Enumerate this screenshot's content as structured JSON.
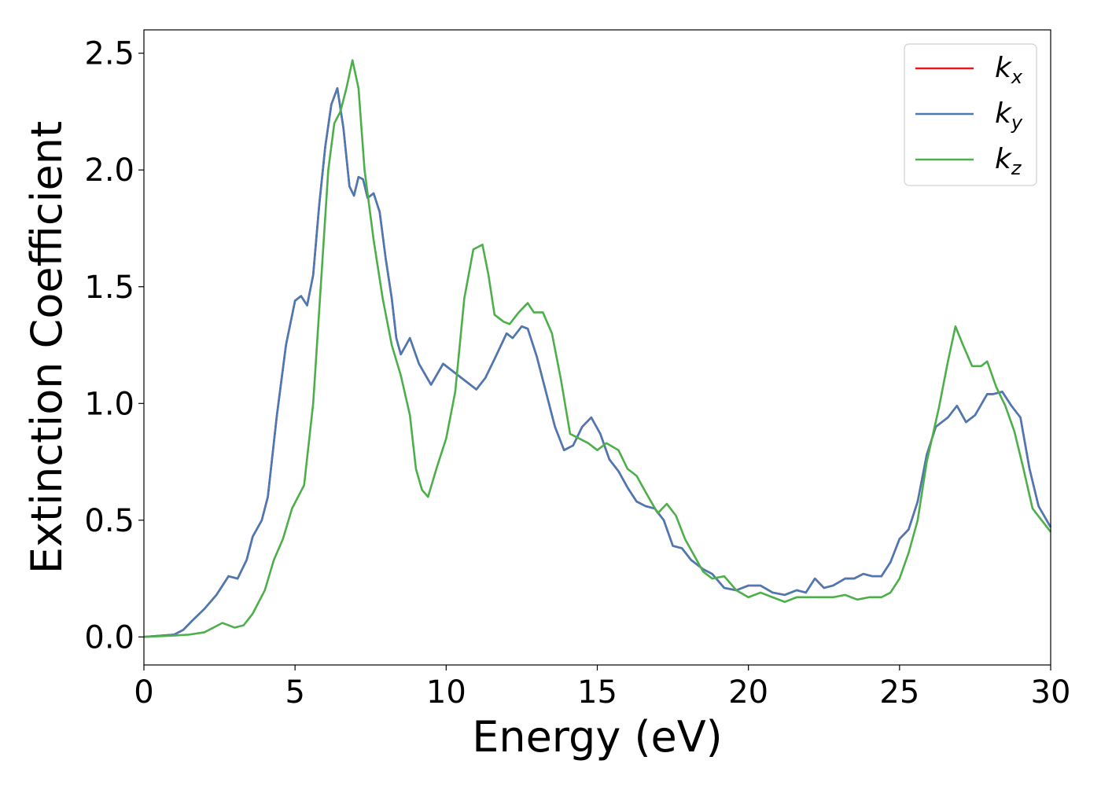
{
  "chart_data": {
    "type": "line",
    "xlabel": "Energy (eV)",
    "ylabel": "Extinction Coefficient",
    "xlim": [
      0,
      30
    ],
    "ylim": [
      -0.12,
      2.6
    ],
    "xticks": [
      0,
      5,
      10,
      15,
      20,
      25,
      30
    ],
    "xtick_labels": [
      "0",
      "5",
      "10",
      "15",
      "20",
      "25",
      "30"
    ],
    "yticks": [
      0.0,
      0.5,
      1.0,
      1.5,
      2.0,
      2.5
    ],
    "ytick_labels": [
      "0.0",
      "0.5",
      "1.0",
      "1.5",
      "2.0",
      "2.5"
    ],
    "grid": false,
    "legend_position": "top-right",
    "series": [
      {
        "name": "k",
        "subscript": "x",
        "color": "#e41a1c",
        "points": [
          [
            0,
            0
          ],
          [
            0.5,
            0.005
          ],
          [
            1,
            0.01
          ],
          [
            1.3,
            0.03
          ],
          [
            1.6,
            0.07
          ],
          [
            2,
            0.12
          ],
          [
            2.4,
            0.18
          ],
          [
            2.8,
            0.26
          ],
          [
            3.1,
            0.25
          ],
          [
            3.4,
            0.33
          ],
          [
            3.6,
            0.43
          ],
          [
            3.9,
            0.5
          ],
          [
            4.1,
            0.6
          ],
          [
            4.4,
            0.95
          ],
          [
            4.7,
            1.25
          ],
          [
            5.0,
            1.44
          ],
          [
            5.2,
            1.46
          ],
          [
            5.4,
            1.42
          ],
          [
            5.6,
            1.55
          ],
          [
            5.8,
            1.85
          ],
          [
            6.0,
            2.1
          ],
          [
            6.2,
            2.28
          ],
          [
            6.4,
            2.35
          ],
          [
            6.6,
            2.18
          ],
          [
            6.8,
            1.93
          ],
          [
            6.95,
            1.89
          ],
          [
            7.1,
            1.97
          ],
          [
            7.25,
            1.96
          ],
          [
            7.4,
            1.88
          ],
          [
            7.6,
            1.9
          ],
          [
            7.8,
            1.82
          ],
          [
            8.0,
            1.62
          ],
          [
            8.2,
            1.45
          ],
          [
            8.35,
            1.28
          ],
          [
            8.5,
            1.21
          ],
          [
            8.8,
            1.28
          ],
          [
            9.1,
            1.17
          ],
          [
            9.5,
            1.08
          ],
          [
            9.9,
            1.17
          ],
          [
            10.3,
            1.13
          ],
          [
            10.7,
            1.09
          ],
          [
            11.0,
            1.06
          ],
          [
            11.3,
            1.11
          ],
          [
            11.6,
            1.19
          ],
          [
            12.0,
            1.3
          ],
          [
            12.2,
            1.28
          ],
          [
            12.5,
            1.33
          ],
          [
            12.7,
            1.32
          ],
          [
            13.0,
            1.2
          ],
          [
            13.3,
            1.05
          ],
          [
            13.6,
            0.9
          ],
          [
            13.9,
            0.8
          ],
          [
            14.2,
            0.82
          ],
          [
            14.5,
            0.9
          ],
          [
            14.8,
            0.94
          ],
          [
            15.1,
            0.87
          ],
          [
            15.4,
            0.76
          ],
          [
            15.7,
            0.71
          ],
          [
            16.0,
            0.64
          ],
          [
            16.3,
            0.58
          ],
          [
            16.6,
            0.56
          ],
          [
            16.9,
            0.55
          ],
          [
            17.2,
            0.5
          ],
          [
            17.5,
            0.39
          ],
          [
            17.8,
            0.38
          ],
          [
            18.1,
            0.33
          ],
          [
            18.5,
            0.29
          ],
          [
            18.8,
            0.27
          ],
          [
            19.2,
            0.21
          ],
          [
            19.6,
            0.2
          ],
          [
            20.0,
            0.22
          ],
          [
            20.4,
            0.22
          ],
          [
            20.8,
            0.19
          ],
          [
            21.2,
            0.18
          ],
          [
            21.6,
            0.2
          ],
          [
            21.9,
            0.19
          ],
          [
            22.2,
            0.25
          ],
          [
            22.5,
            0.21
          ],
          [
            22.8,
            0.22
          ],
          [
            23.2,
            0.25
          ],
          [
            23.5,
            0.25
          ],
          [
            23.8,
            0.27
          ],
          [
            24.1,
            0.26
          ],
          [
            24.4,
            0.26
          ],
          [
            24.7,
            0.32
          ],
          [
            25.0,
            0.42
          ],
          [
            25.3,
            0.46
          ],
          [
            25.6,
            0.58
          ],
          [
            25.9,
            0.78
          ],
          [
            26.2,
            0.9
          ],
          [
            26.6,
            0.94
          ],
          [
            26.9,
            0.99
          ],
          [
            27.2,
            0.92
          ],
          [
            27.5,
            0.95
          ],
          [
            27.9,
            1.04
          ],
          [
            28.1,
            1.04
          ],
          [
            28.4,
            1.05
          ],
          [
            28.7,
            0.99
          ],
          [
            29.0,
            0.94
          ],
          [
            29.3,
            0.72
          ],
          [
            29.6,
            0.56
          ],
          [
            30.0,
            0.47
          ]
        ]
      },
      {
        "name": "k",
        "subscript": "y",
        "color": "#4a7ab5",
        "points": [
          [
            0,
            0
          ],
          [
            0.5,
            0.005
          ],
          [
            1,
            0.01
          ],
          [
            1.3,
            0.03
          ],
          [
            1.6,
            0.07
          ],
          [
            2,
            0.12
          ],
          [
            2.4,
            0.18
          ],
          [
            2.8,
            0.26
          ],
          [
            3.1,
            0.25
          ],
          [
            3.4,
            0.33
          ],
          [
            3.6,
            0.43
          ],
          [
            3.9,
            0.5
          ],
          [
            4.1,
            0.6
          ],
          [
            4.4,
            0.95
          ],
          [
            4.7,
            1.25
          ],
          [
            5.0,
            1.44
          ],
          [
            5.2,
            1.46
          ],
          [
            5.4,
            1.42
          ],
          [
            5.6,
            1.55
          ],
          [
            5.8,
            1.85
          ],
          [
            6.0,
            2.1
          ],
          [
            6.2,
            2.28
          ],
          [
            6.4,
            2.35
          ],
          [
            6.6,
            2.18
          ],
          [
            6.8,
            1.93
          ],
          [
            6.95,
            1.89
          ],
          [
            7.1,
            1.97
          ],
          [
            7.25,
            1.96
          ],
          [
            7.4,
            1.88
          ],
          [
            7.6,
            1.9
          ],
          [
            7.8,
            1.82
          ],
          [
            8.0,
            1.62
          ],
          [
            8.2,
            1.45
          ],
          [
            8.35,
            1.28
          ],
          [
            8.5,
            1.21
          ],
          [
            8.8,
            1.28
          ],
          [
            9.1,
            1.17
          ],
          [
            9.5,
            1.08
          ],
          [
            9.9,
            1.17
          ],
          [
            10.3,
            1.13
          ],
          [
            10.7,
            1.09
          ],
          [
            11.0,
            1.06
          ],
          [
            11.3,
            1.11
          ],
          [
            11.6,
            1.19
          ],
          [
            12.0,
            1.3
          ],
          [
            12.2,
            1.28
          ],
          [
            12.5,
            1.33
          ],
          [
            12.7,
            1.32
          ],
          [
            13.0,
            1.2
          ],
          [
            13.3,
            1.05
          ],
          [
            13.6,
            0.9
          ],
          [
            13.9,
            0.8
          ],
          [
            14.2,
            0.82
          ],
          [
            14.5,
            0.9
          ],
          [
            14.8,
            0.94
          ],
          [
            15.1,
            0.87
          ],
          [
            15.4,
            0.76
          ],
          [
            15.7,
            0.71
          ],
          [
            16.0,
            0.64
          ],
          [
            16.3,
            0.58
          ],
          [
            16.6,
            0.56
          ],
          [
            16.9,
            0.55
          ],
          [
            17.2,
            0.5
          ],
          [
            17.5,
            0.39
          ],
          [
            17.8,
            0.38
          ],
          [
            18.1,
            0.33
          ],
          [
            18.5,
            0.29
          ],
          [
            18.8,
            0.27
          ],
          [
            19.2,
            0.21
          ],
          [
            19.6,
            0.2
          ],
          [
            20.0,
            0.22
          ],
          [
            20.4,
            0.22
          ],
          [
            20.8,
            0.19
          ],
          [
            21.2,
            0.18
          ],
          [
            21.6,
            0.2
          ],
          [
            21.9,
            0.19
          ],
          [
            22.2,
            0.25
          ],
          [
            22.5,
            0.21
          ],
          [
            22.8,
            0.22
          ],
          [
            23.2,
            0.25
          ],
          [
            23.5,
            0.25
          ],
          [
            23.8,
            0.27
          ],
          [
            24.1,
            0.26
          ],
          [
            24.4,
            0.26
          ],
          [
            24.7,
            0.32
          ],
          [
            25.0,
            0.42
          ],
          [
            25.3,
            0.46
          ],
          [
            25.6,
            0.58
          ],
          [
            25.9,
            0.78
          ],
          [
            26.2,
            0.9
          ],
          [
            26.6,
            0.94
          ],
          [
            26.9,
            0.99
          ],
          [
            27.2,
            0.92
          ],
          [
            27.5,
            0.95
          ],
          [
            27.9,
            1.04
          ],
          [
            28.1,
            1.04
          ],
          [
            28.4,
            1.05
          ],
          [
            28.7,
            0.99
          ],
          [
            29.0,
            0.94
          ],
          [
            29.3,
            0.72
          ],
          [
            29.6,
            0.56
          ],
          [
            30.0,
            0.47
          ]
        ]
      },
      {
        "name": "k",
        "subscript": "z",
        "color": "#4daf4a",
        "points": [
          [
            0,
            0
          ],
          [
            0.5,
            0.003
          ],
          [
            1,
            0.006
          ],
          [
            1.5,
            0.01
          ],
          [
            2.0,
            0.02
          ],
          [
            2.3,
            0.04
          ],
          [
            2.6,
            0.06
          ],
          [
            3.0,
            0.04
          ],
          [
            3.3,
            0.05
          ],
          [
            3.6,
            0.1
          ],
          [
            4.0,
            0.2
          ],
          [
            4.3,
            0.33
          ],
          [
            4.6,
            0.42
          ],
          [
            4.9,
            0.55
          ],
          [
            5.3,
            0.65
          ],
          [
            5.6,
            1.0
          ],
          [
            5.9,
            1.6
          ],
          [
            6.1,
            2.0
          ],
          [
            6.3,
            2.2
          ],
          [
            6.5,
            2.25
          ],
          [
            6.7,
            2.35
          ],
          [
            6.9,
            2.47
          ],
          [
            7.1,
            2.35
          ],
          [
            7.3,
            2.0
          ],
          [
            7.6,
            1.7
          ],
          [
            7.9,
            1.45
          ],
          [
            8.2,
            1.25
          ],
          [
            8.5,
            1.12
          ],
          [
            8.8,
            0.95
          ],
          [
            9.0,
            0.72
          ],
          [
            9.2,
            0.63
          ],
          [
            9.4,
            0.6
          ],
          [
            9.7,
            0.73
          ],
          [
            10.0,
            0.85
          ],
          [
            10.3,
            1.05
          ],
          [
            10.6,
            1.45
          ],
          [
            10.9,
            1.66
          ],
          [
            11.2,
            1.68
          ],
          [
            11.4,
            1.55
          ],
          [
            11.6,
            1.38
          ],
          [
            11.9,
            1.35
          ],
          [
            12.1,
            1.34
          ],
          [
            12.4,
            1.39
          ],
          [
            12.7,
            1.43
          ],
          [
            12.9,
            1.39
          ],
          [
            13.2,
            1.39
          ],
          [
            13.5,
            1.3
          ],
          [
            13.8,
            1.1
          ],
          [
            14.1,
            0.87
          ],
          [
            14.4,
            0.85
          ],
          [
            14.7,
            0.83
          ],
          [
            15.0,
            0.8
          ],
          [
            15.3,
            0.83
          ],
          [
            15.7,
            0.8
          ],
          [
            16.0,
            0.72
          ],
          [
            16.3,
            0.69
          ],
          [
            16.6,
            0.62
          ],
          [
            17.0,
            0.53
          ],
          [
            17.3,
            0.57
          ],
          [
            17.6,
            0.52
          ],
          [
            17.9,
            0.42
          ],
          [
            18.2,
            0.35
          ],
          [
            18.5,
            0.28
          ],
          [
            18.8,
            0.25
          ],
          [
            19.2,
            0.26
          ],
          [
            19.6,
            0.2
          ],
          [
            20.0,
            0.17
          ],
          [
            20.4,
            0.19
          ],
          [
            20.8,
            0.17
          ],
          [
            21.2,
            0.15
          ],
          [
            21.6,
            0.17
          ],
          [
            22.0,
            0.17
          ],
          [
            22.4,
            0.17
          ],
          [
            22.8,
            0.17
          ],
          [
            23.2,
            0.18
          ],
          [
            23.6,
            0.16
          ],
          [
            24.0,
            0.17
          ],
          [
            24.4,
            0.17
          ],
          [
            24.7,
            0.19
          ],
          [
            25.0,
            0.25
          ],
          [
            25.3,
            0.36
          ],
          [
            25.6,
            0.5
          ],
          [
            25.9,
            0.75
          ],
          [
            26.3,
            0.98
          ],
          [
            26.6,
            1.18
          ],
          [
            26.85,
            1.33
          ],
          [
            27.1,
            1.25
          ],
          [
            27.4,
            1.16
          ],
          [
            27.7,
            1.16
          ],
          [
            27.9,
            1.18
          ],
          [
            28.2,
            1.07
          ],
          [
            28.5,
            0.99
          ],
          [
            28.8,
            0.88
          ],
          [
            29.1,
            0.72
          ],
          [
            29.4,
            0.55
          ],
          [
            29.7,
            0.5
          ],
          [
            30.0,
            0.45
          ]
        ]
      }
    ]
  }
}
